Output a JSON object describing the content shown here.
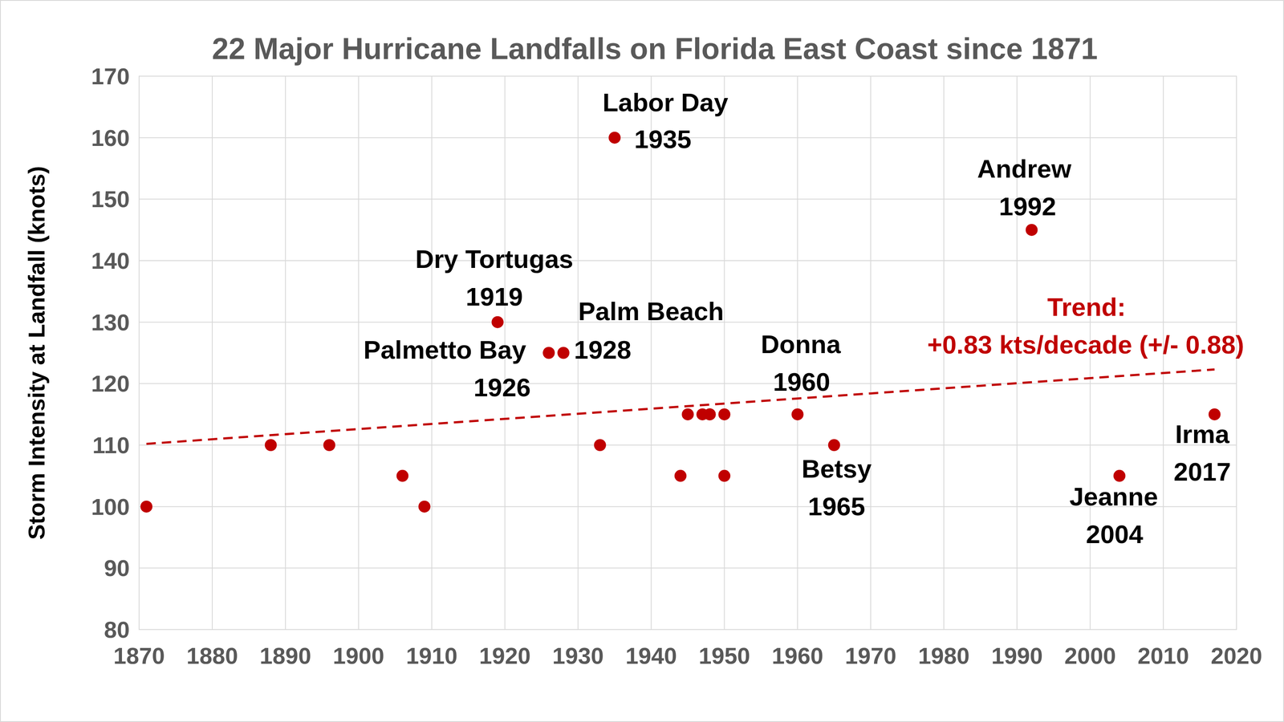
{
  "chart_data": {
    "type": "scatter",
    "title": "22 Major Hurricane Landfalls on Florida East Coast since 1871",
    "y_label": "Storm Intensity at Landfall (knots)",
    "x": [
      1871,
      1888,
      1896,
      1906,
      1909,
      1919,
      1926,
      1928,
      1933,
      1935,
      1944,
      1945,
      1947,
      1948,
      1948,
      1950,
      1950,
      1960,
      1965,
      1992,
      2004,
      2017
    ],
    "values": [
      100,
      110,
      110,
      105,
      100,
      130,
      125,
      125,
      110,
      160,
      105,
      115,
      115,
      115,
      115,
      115,
      105,
      115,
      110,
      145,
      105,
      115
    ],
    "color": "#c00000",
    "marker": "circle",
    "xlim": [
      1870,
      2020
    ],
    "ylim": [
      80,
      170
    ],
    "xticks": [
      1870,
      1880,
      1890,
      1900,
      1910,
      1920,
      1930,
      1940,
      1950,
      1960,
      1970,
      1980,
      1990,
      2000,
      2010,
      2020
    ],
    "yticks": [
      80,
      90,
      100,
      110,
      120,
      130,
      140,
      150,
      160,
      170
    ],
    "grid": true,
    "point_labels": [
      {
        "index": 9,
        "lines": [
          "Labor Day",
          "1935"
        ]
      },
      {
        "index": 5,
        "lines": [
          "Dry Tortugas",
          "1919"
        ]
      },
      {
        "index": 6,
        "lines": [
          "Palmetto Bay",
          "1926"
        ]
      },
      {
        "index": 7,
        "lines": [
          "Palm Beach",
          "1928"
        ]
      },
      {
        "index": 17,
        "lines": [
          "Donna",
          "1960"
        ]
      },
      {
        "index": 18,
        "lines": [
          "Betsy",
          "1965"
        ]
      },
      {
        "index": 19,
        "lines": [
          "Andrew",
          "1992"
        ]
      },
      {
        "index": 20,
        "lines": [
          "Jeanne",
          "2004"
        ]
      },
      {
        "index": 21,
        "lines": [
          "Irma",
          "2017"
        ]
      }
    ],
    "trend": {
      "x": [
        1871,
        2017
      ],
      "values": [
        110.2,
        122.3
      ],
      "line_style": "dashed",
      "label": [
        "Trend:",
        "+0.83 kts/decade (+/- 0.88)"
      ]
    }
  }
}
